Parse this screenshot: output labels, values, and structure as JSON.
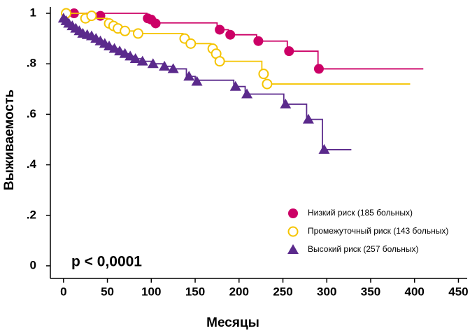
{
  "chart_data": {
    "type": "survival",
    "xlabel": "Месяцы",
    "ylabel": "Выживаемость",
    "annotation": "p < 0,0001",
    "xlim": [
      -15,
      460
    ],
    "ylim": [
      -0.05,
      1.025
    ],
    "xticks": [
      0,
      50,
      100,
      150,
      200,
      250,
      300,
      350,
      400,
      450
    ],
    "yticks": [
      0,
      {
        "value": 0.2,
        "label": ".2"
      },
      {
        "value": 0.4,
        "label": ".4"
      },
      {
        "value": 0.6,
        "label": ".6"
      },
      {
        "value": 0.8,
        "label": ".8"
      },
      1
    ],
    "series": [
      {
        "name": "Низкий риск (185 больных)",
        "color": "#cc0066",
        "marker": "circle",
        "x": [
          0,
          95,
          103,
          175,
          188,
          220,
          255,
          290,
          410
        ],
        "values": [
          1.0,
          0.98,
          0.962,
          0.935,
          0.915,
          0.89,
          0.85,
          0.78,
          0.78
        ],
        "censor_x": [
          12,
          42,
          96,
          100,
          105,
          178,
          190,
          222,
          257,
          291
        ],
        "censor_values": [
          1.0,
          0.99,
          0.98,
          0.975,
          0.96,
          0.935,
          0.915,
          0.89,
          0.85,
          0.78
        ]
      },
      {
        "name": "Промежуточный риск (143 больных)",
        "color": "#f5c400",
        "marker": "open-circle",
        "x": [
          0,
          25,
          50,
          55,
          60,
          68,
          83,
          136,
          143,
          168,
          173,
          176,
          226,
          230,
          395
        ],
        "values": [
          1.0,
          0.98,
          0.96,
          0.95,
          0.94,
          0.93,
          0.92,
          0.9,
          0.88,
          0.86,
          0.84,
          0.81,
          0.76,
          0.72,
          0.72
        ],
        "censor_x": [
          3,
          25,
          32,
          52,
          57,
          62,
          70,
          85,
          138,
          145,
          170,
          174,
          178,
          228,
          232
        ],
        "censor_values": [
          1.0,
          0.98,
          0.99,
          0.96,
          0.95,
          0.94,
          0.93,
          0.92,
          0.9,
          0.88,
          0.86,
          0.84,
          0.81,
          0.76,
          0.72
        ]
      },
      {
        "name": "Высокий риск (257 больных)",
        "color": "#5b2a8c",
        "marker": "triangle",
        "x": [
          0,
          3,
          6,
          10,
          14,
          18,
          22,
          27,
          32,
          37,
          42,
          47,
          52,
          58,
          64,
          70,
          76,
          82,
          90,
          102,
          115,
          125,
          140,
          150,
          194,
          207,
          251,
          277,
          295,
          328
        ],
        "values": [
          0.98,
          0.97,
          0.96,
          0.95,
          0.94,
          0.93,
          0.92,
          0.915,
          0.91,
          0.9,
          0.89,
          0.88,
          0.87,
          0.86,
          0.85,
          0.84,
          0.83,
          0.82,
          0.81,
          0.8,
          0.79,
          0.78,
          0.75,
          0.735,
          0.71,
          0.68,
          0.64,
          0.58,
          0.46,
          0.46
        ],
        "censor_x": [
          0,
          3,
          6,
          10,
          14,
          18,
          22,
          27,
          32,
          37,
          42,
          47,
          52,
          58,
          64,
          70,
          76,
          82,
          90,
          102,
          115,
          125,
          143,
          152,
          196,
          209,
          253,
          279,
          297
        ],
        "censor_values": [
          0.98,
          0.97,
          0.96,
          0.95,
          0.94,
          0.93,
          0.92,
          0.915,
          0.91,
          0.9,
          0.89,
          0.88,
          0.87,
          0.86,
          0.85,
          0.84,
          0.83,
          0.82,
          0.81,
          0.8,
          0.79,
          0.78,
          0.75,
          0.73,
          0.71,
          0.68,
          0.64,
          0.58,
          0.46
        ]
      }
    ]
  }
}
